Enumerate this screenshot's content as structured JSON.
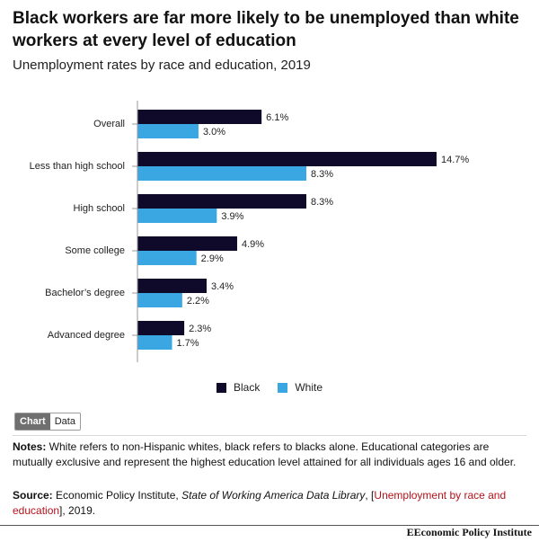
{
  "title": "Black workers are far more likely to be unemployed than white workers at every level of education",
  "subtitle": "Unemployment rates by race and education, 2019",
  "colors": {
    "black": "#0f0a2a",
    "white": "#3aa7e2"
  },
  "legend": [
    {
      "label": "Black",
      "color": "#0f0a2a"
    },
    {
      "label": "White",
      "color": "#3aa7e2"
    }
  ],
  "toggle": {
    "chart_label": "Chart",
    "data_label": "Data"
  },
  "notes": {
    "label": "Notes:",
    "text": " White refers to non-Hispanic whites, black refers to blacks alone. Educational categories are mutually exclusive and represent the highest education level attained for all individuals ages 16 and older."
  },
  "source": {
    "label": "Source:",
    "org": " Economic Policy Institute, ",
    "pub": "State of Working America Data Library",
    "sep": ", [",
    "link": "Unemployment by race and education",
    "end": "], 2019."
  },
  "footer": "Economic Policy Institute",
  "chart_data": {
    "type": "bar",
    "orientation": "horizontal",
    "categories": [
      "Overall",
      "Less than high school",
      "High school",
      "Some college",
      "Bachelor’s degree",
      "Advanced degree"
    ],
    "series": [
      {
        "name": "Black",
        "values": [
          6.1,
          14.7,
          8.3,
          4.9,
          3.4,
          2.3
        ],
        "labels": [
          "6.1%",
          "14.7%",
          "8.3%",
          "4.9%",
          "3.4%",
          "2.3%"
        ]
      },
      {
        "name": "White",
        "values": [
          3.0,
          8.3,
          3.9,
          2.9,
          2.2,
          1.7
        ],
        "labels": [
          "3.0%",
          "8.3%",
          "3.9%",
          "2.9%",
          "2.2%",
          "1.7%"
        ]
      }
    ],
    "title": "Unemployment rates by race and education, 2019",
    "xlim": [
      0,
      15
    ],
    "legend_position": "bottom"
  }
}
